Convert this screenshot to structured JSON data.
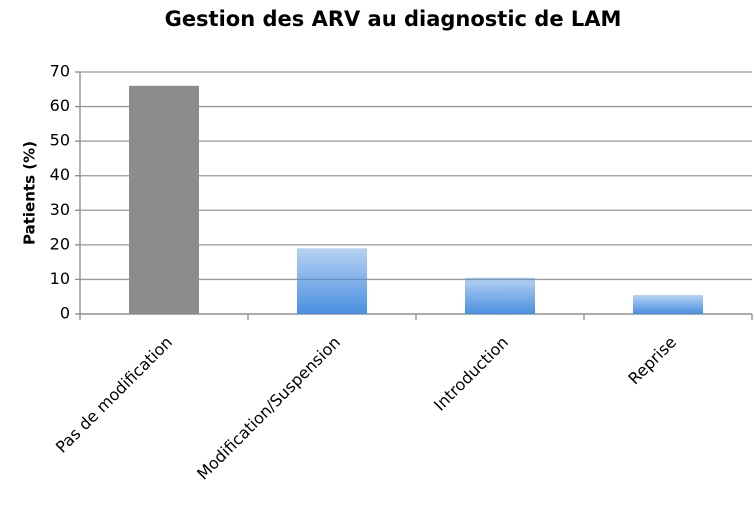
{
  "chart_data": {
    "type": "bar",
    "title": "Gestion des ARV au diagnostic de LAM",
    "y_label": "Patients (%)",
    "categories": [
      "Pas de modification",
      "Modification/Suspension",
      "Introduction",
      "Reprise"
    ],
    "values": [
      66,
      19,
      10.5,
      5.5
    ],
    "colors": [
      "#8c8c8c",
      "#4a8fe0",
      "#4a8fe0",
      "#4a8fe0"
    ],
    "ylim": [
      0,
      70
    ],
    "yticks": [
      0,
      10,
      20,
      30,
      40,
      50,
      60,
      70
    ],
    "grid": true
  }
}
